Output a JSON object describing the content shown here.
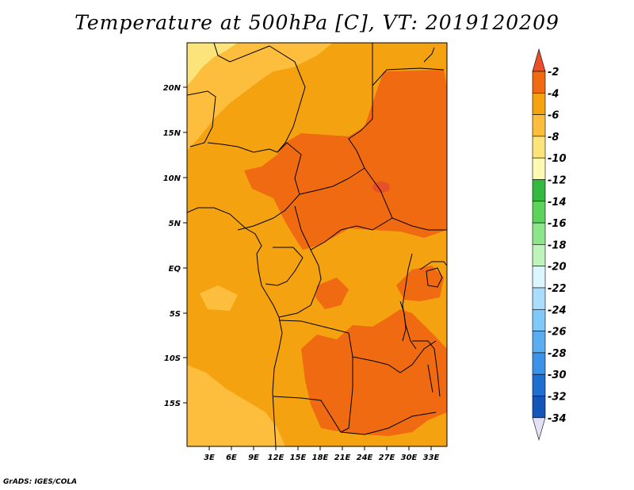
{
  "title": "Temperature at 500hPa [C], VT: 2019120209",
  "credit": "GrADS: IGES/COLA",
  "map": {
    "lat_labels": [
      "20N",
      "15N",
      "10N",
      "5N",
      "EQ",
      "5S",
      "10S",
      "15S"
    ],
    "lon_labels": [
      "3E",
      "6E",
      "9E",
      "12E",
      "15E",
      "18E",
      "21E",
      "24E",
      "27E",
      "30E",
      "33E"
    ]
  },
  "colorbar": {
    "labels": [
      "-2",
      "-4",
      "-6",
      "-8",
      "-10",
      "-12",
      "-14",
      "-16",
      "-18",
      "-20",
      "-22",
      "-24",
      "-26",
      "-28",
      "-30",
      "-32",
      "-34"
    ],
    "colors": [
      "#e8502a",
      "#f06a12",
      "#f5a210",
      "#fcbe3c",
      "#fde47a",
      "#fefab4",
      "#34ba40",
      "#5ed35c",
      "#8ee68a",
      "#bff3bc",
      "#dcf6fe",
      "#aadcfb",
      "#80c8f8",
      "#5aaef0",
      "#3c92e6",
      "#1f6fd1",
      "#1456b7",
      "#0c3a8c",
      "#0c1a70",
      "#e4e0f6"
    ]
  }
}
